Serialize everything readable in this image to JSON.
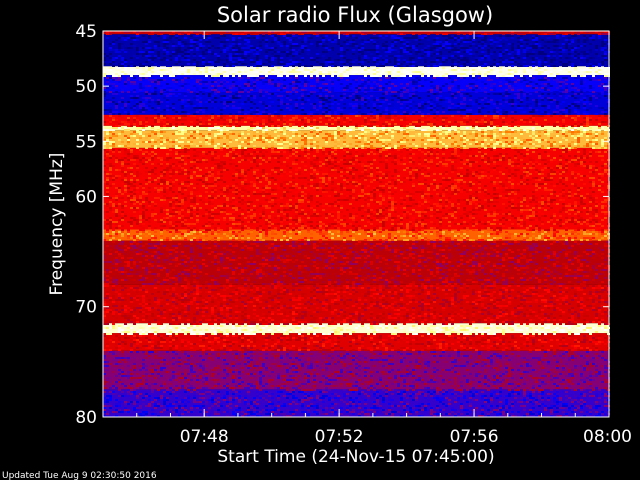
{
  "chart_data": {
    "type": "heatmap",
    "title": "Solar radio Flux (Glasgow)",
    "xlabel": "Start Time (24-Nov-15 07:45:00)",
    "ylabel": "Frequency [MHz]",
    "x_ticks": [
      "07:48",
      "07:52",
      "07:56",
      "08:00"
    ],
    "x_tick_minutes": [
      48,
      52,
      56,
      60
    ],
    "xlim_minutes": [
      45,
      60
    ],
    "y_ticks": [
      45,
      50,
      55,
      60,
      70,
      80
    ],
    "ylim": [
      45,
      80
    ],
    "colormap": [
      "#000080",
      "#0000ff",
      "#800080",
      "#c00000",
      "#ff0000",
      "#ff8000",
      "#ffff80",
      "#ffffff"
    ],
    "bands": [
      {
        "from": 45.0,
        "to": 45.3,
        "level": 0.45
      },
      {
        "from": 45.3,
        "to": 48.2,
        "level": 0.05
      },
      {
        "from": 48.2,
        "to": 49.0,
        "level": 0.98
      },
      {
        "from": 49.0,
        "to": 50.6,
        "level": 0.15
      },
      {
        "from": 50.6,
        "to": 52.6,
        "level": 0.1
      },
      {
        "from": 52.6,
        "to": 53.6,
        "level": 0.55
      },
      {
        "from": 53.6,
        "to": 54.0,
        "level": 0.9
      },
      {
        "from": 54.0,
        "to": 55.6,
        "level": 0.78
      },
      {
        "from": 55.6,
        "to": 63.0,
        "level": 0.55
      },
      {
        "from": 63.0,
        "to": 64.0,
        "level": 0.68
      },
      {
        "from": 64.0,
        "to": 68.0,
        "level": 0.42
      },
      {
        "from": 68.0,
        "to": 71.5,
        "level": 0.48
      },
      {
        "from": 71.5,
        "to": 72.4,
        "level": 0.95
      },
      {
        "from": 72.4,
        "to": 74.0,
        "level": 0.5
      },
      {
        "from": 74.0,
        "to": 77.5,
        "level": 0.3
      },
      {
        "from": 77.5,
        "to": 80.0,
        "level": 0.2
      }
    ]
  },
  "footer": "Updated Tue Aug  9 02:30:50 2016"
}
